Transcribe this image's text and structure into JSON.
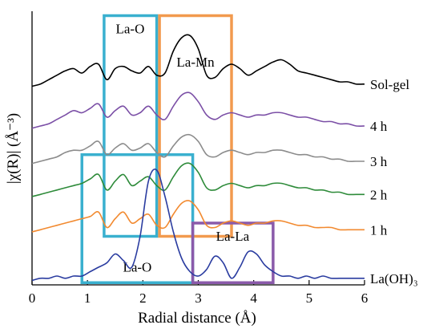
{
  "chart_data": {
    "type": "line",
    "xlabel": "Radial distance (Å)",
    "ylabel": "|χ(R)| (Å⁻³)",
    "xlim": [
      0,
      6
    ],
    "x_ticks": [
      "0",
      "1",
      "2",
      "3",
      "4",
      "5",
      "6"
    ],
    "y_ticks_shown": false,
    "grid": false,
    "x": [
      0.0,
      0.15,
      0.3,
      0.45,
      0.6,
      0.75,
      0.9,
      1.05,
      1.2,
      1.35,
      1.5,
      1.65,
      1.8,
      1.95,
      2.1,
      2.25,
      2.4,
      2.55,
      2.7,
      2.85,
      3.0,
      3.15,
      3.3,
      3.45,
      3.6,
      3.75,
      3.9,
      4.05,
      4.2,
      4.35,
      4.5,
      4.65,
      4.8,
      4.95,
      5.1,
      5.25,
      5.4,
      5.55,
      5.7,
      5.85,
      6.0
    ],
    "series": [
      {
        "name": "Sol-gel",
        "color": "#000000",
        "offset": 0.88,
        "values": [
          0,
          0.01,
          0.03,
          0.05,
          0.07,
          0.08,
          0.06,
          0.09,
          0.1,
          0.03,
          0.08,
          0.09,
          0.07,
          0.06,
          0.09,
          0.05,
          0.06,
          0.16,
          0.22,
          0.23,
          0.17,
          0.05,
          0.04,
          0.08,
          0.1,
          0.08,
          0.05,
          0.07,
          0.09,
          0.11,
          0.12,
          0.1,
          0.07,
          0.06,
          0.05,
          0.04,
          0.03,
          0.02,
          0.02,
          0.01,
          0.01
        ]
      },
      {
        "name": "4 h",
        "color": "#7b4fa6",
        "offset": 0.69,
        "values": [
          0,
          0.01,
          0.02,
          0.04,
          0.06,
          0.08,
          0.07,
          0.09,
          0.11,
          0.05,
          0.08,
          0.1,
          0.06,
          0.07,
          0.1,
          0.06,
          0.04,
          0.1,
          0.15,
          0.16,
          0.12,
          0.06,
          0.04,
          0.06,
          0.07,
          0.06,
          0.05,
          0.06,
          0.06,
          0.07,
          0.07,
          0.06,
          0.05,
          0.05,
          0.04,
          0.03,
          0.03,
          0.02,
          0.02,
          0.01,
          0.01
        ]
      },
      {
        "name": "3 h",
        "color": "#8c8c8c",
        "offset": 0.53,
        "values": [
          0,
          0.01,
          0.02,
          0.03,
          0.05,
          0.06,
          0.06,
          0.08,
          0.1,
          0.04,
          0.07,
          0.09,
          0.06,
          0.07,
          0.09,
          0.05,
          0.03,
          0.08,
          0.12,
          0.13,
          0.1,
          0.04,
          0.03,
          0.05,
          0.06,
          0.05,
          0.04,
          0.05,
          0.05,
          0.06,
          0.06,
          0.05,
          0.04,
          0.04,
          0.03,
          0.03,
          0.02,
          0.02,
          0.01,
          0.01,
          0.01
        ]
      },
      {
        "name": "2 h",
        "color": "#2e8b3a",
        "offset": 0.38,
        "values": [
          0,
          0.01,
          0.02,
          0.03,
          0.04,
          0.05,
          0.06,
          0.08,
          0.1,
          0.03,
          0.07,
          0.1,
          0.05,
          0.07,
          0.09,
          0.05,
          0.03,
          0.09,
          0.14,
          0.15,
          0.11,
          0.04,
          0.03,
          0.05,
          0.06,
          0.05,
          0.04,
          0.05,
          0.05,
          0.06,
          0.06,
          0.05,
          0.04,
          0.04,
          0.03,
          0.03,
          0.02,
          0.02,
          0.01,
          0.01,
          0.01
        ]
      },
      {
        "name": "1 h",
        "color": "#f28a30",
        "offset": 0.22,
        "values": [
          0,
          0.01,
          0.02,
          0.03,
          0.04,
          0.05,
          0.06,
          0.07,
          0.09,
          0.02,
          0.06,
          0.09,
          0.04,
          0.06,
          0.08,
          0.03,
          0.02,
          0.08,
          0.13,
          0.14,
          0.1,
          0.03,
          0.02,
          0.04,
          0.05,
          0.04,
          0.03,
          0.04,
          0.04,
          0.05,
          0.05,
          0.04,
          0.03,
          0.03,
          0.02,
          0.02,
          0.02,
          0.01,
          0.01,
          0.01,
          0.01
        ]
      },
      {
        "name": "La(OH)₃",
        "color": "#2a3ca0",
        "offset": 0.0,
        "values": [
          0,
          0.01,
          0.01,
          0.02,
          0.01,
          0.02,
          0.02,
          0.04,
          0.06,
          0.08,
          0.12,
          0.09,
          0.06,
          0.2,
          0.45,
          0.5,
          0.38,
          0.22,
          0.1,
          0.04,
          0.02,
          0.05,
          0.11,
          0.08,
          0.01,
          0.06,
          0.13,
          0.12,
          0.07,
          0.04,
          0.02,
          0.02,
          0.01,
          0.02,
          0.01,
          0.02,
          0.01,
          0.01,
          0.01,
          0.01,
          0.01
        ]
      }
    ],
    "regions": [
      {
        "label": "La-O",
        "color": "#3ab0cf",
        "x0": 1.3,
        "x1": 2.25,
        "y0": 0.2,
        "y1": 1.2,
        "label_x": 1.77,
        "label_y": 1.12
      },
      {
        "label": "La-Mn",
        "color": "#f29a4e",
        "x0": 2.3,
        "x1": 3.6,
        "y0": 0.2,
        "y1": 1.2,
        "label_x": 2.95,
        "label_y": 0.97
      },
      {
        "label": "La-O",
        "color": "#3ab0cf",
        "x0": 0.9,
        "x1": 2.9,
        "y0": -0.01,
        "y1": 0.57,
        "label_x": 1.9,
        "label_y": 0.04
      },
      {
        "label": "La-La",
        "color": "#8a5aaa",
        "x0": 2.9,
        "x1": 4.35,
        "y0": -0.01,
        "y1": 0.26,
        "label_x": 3.62,
        "label_y": 0.18
      }
    ]
  }
}
